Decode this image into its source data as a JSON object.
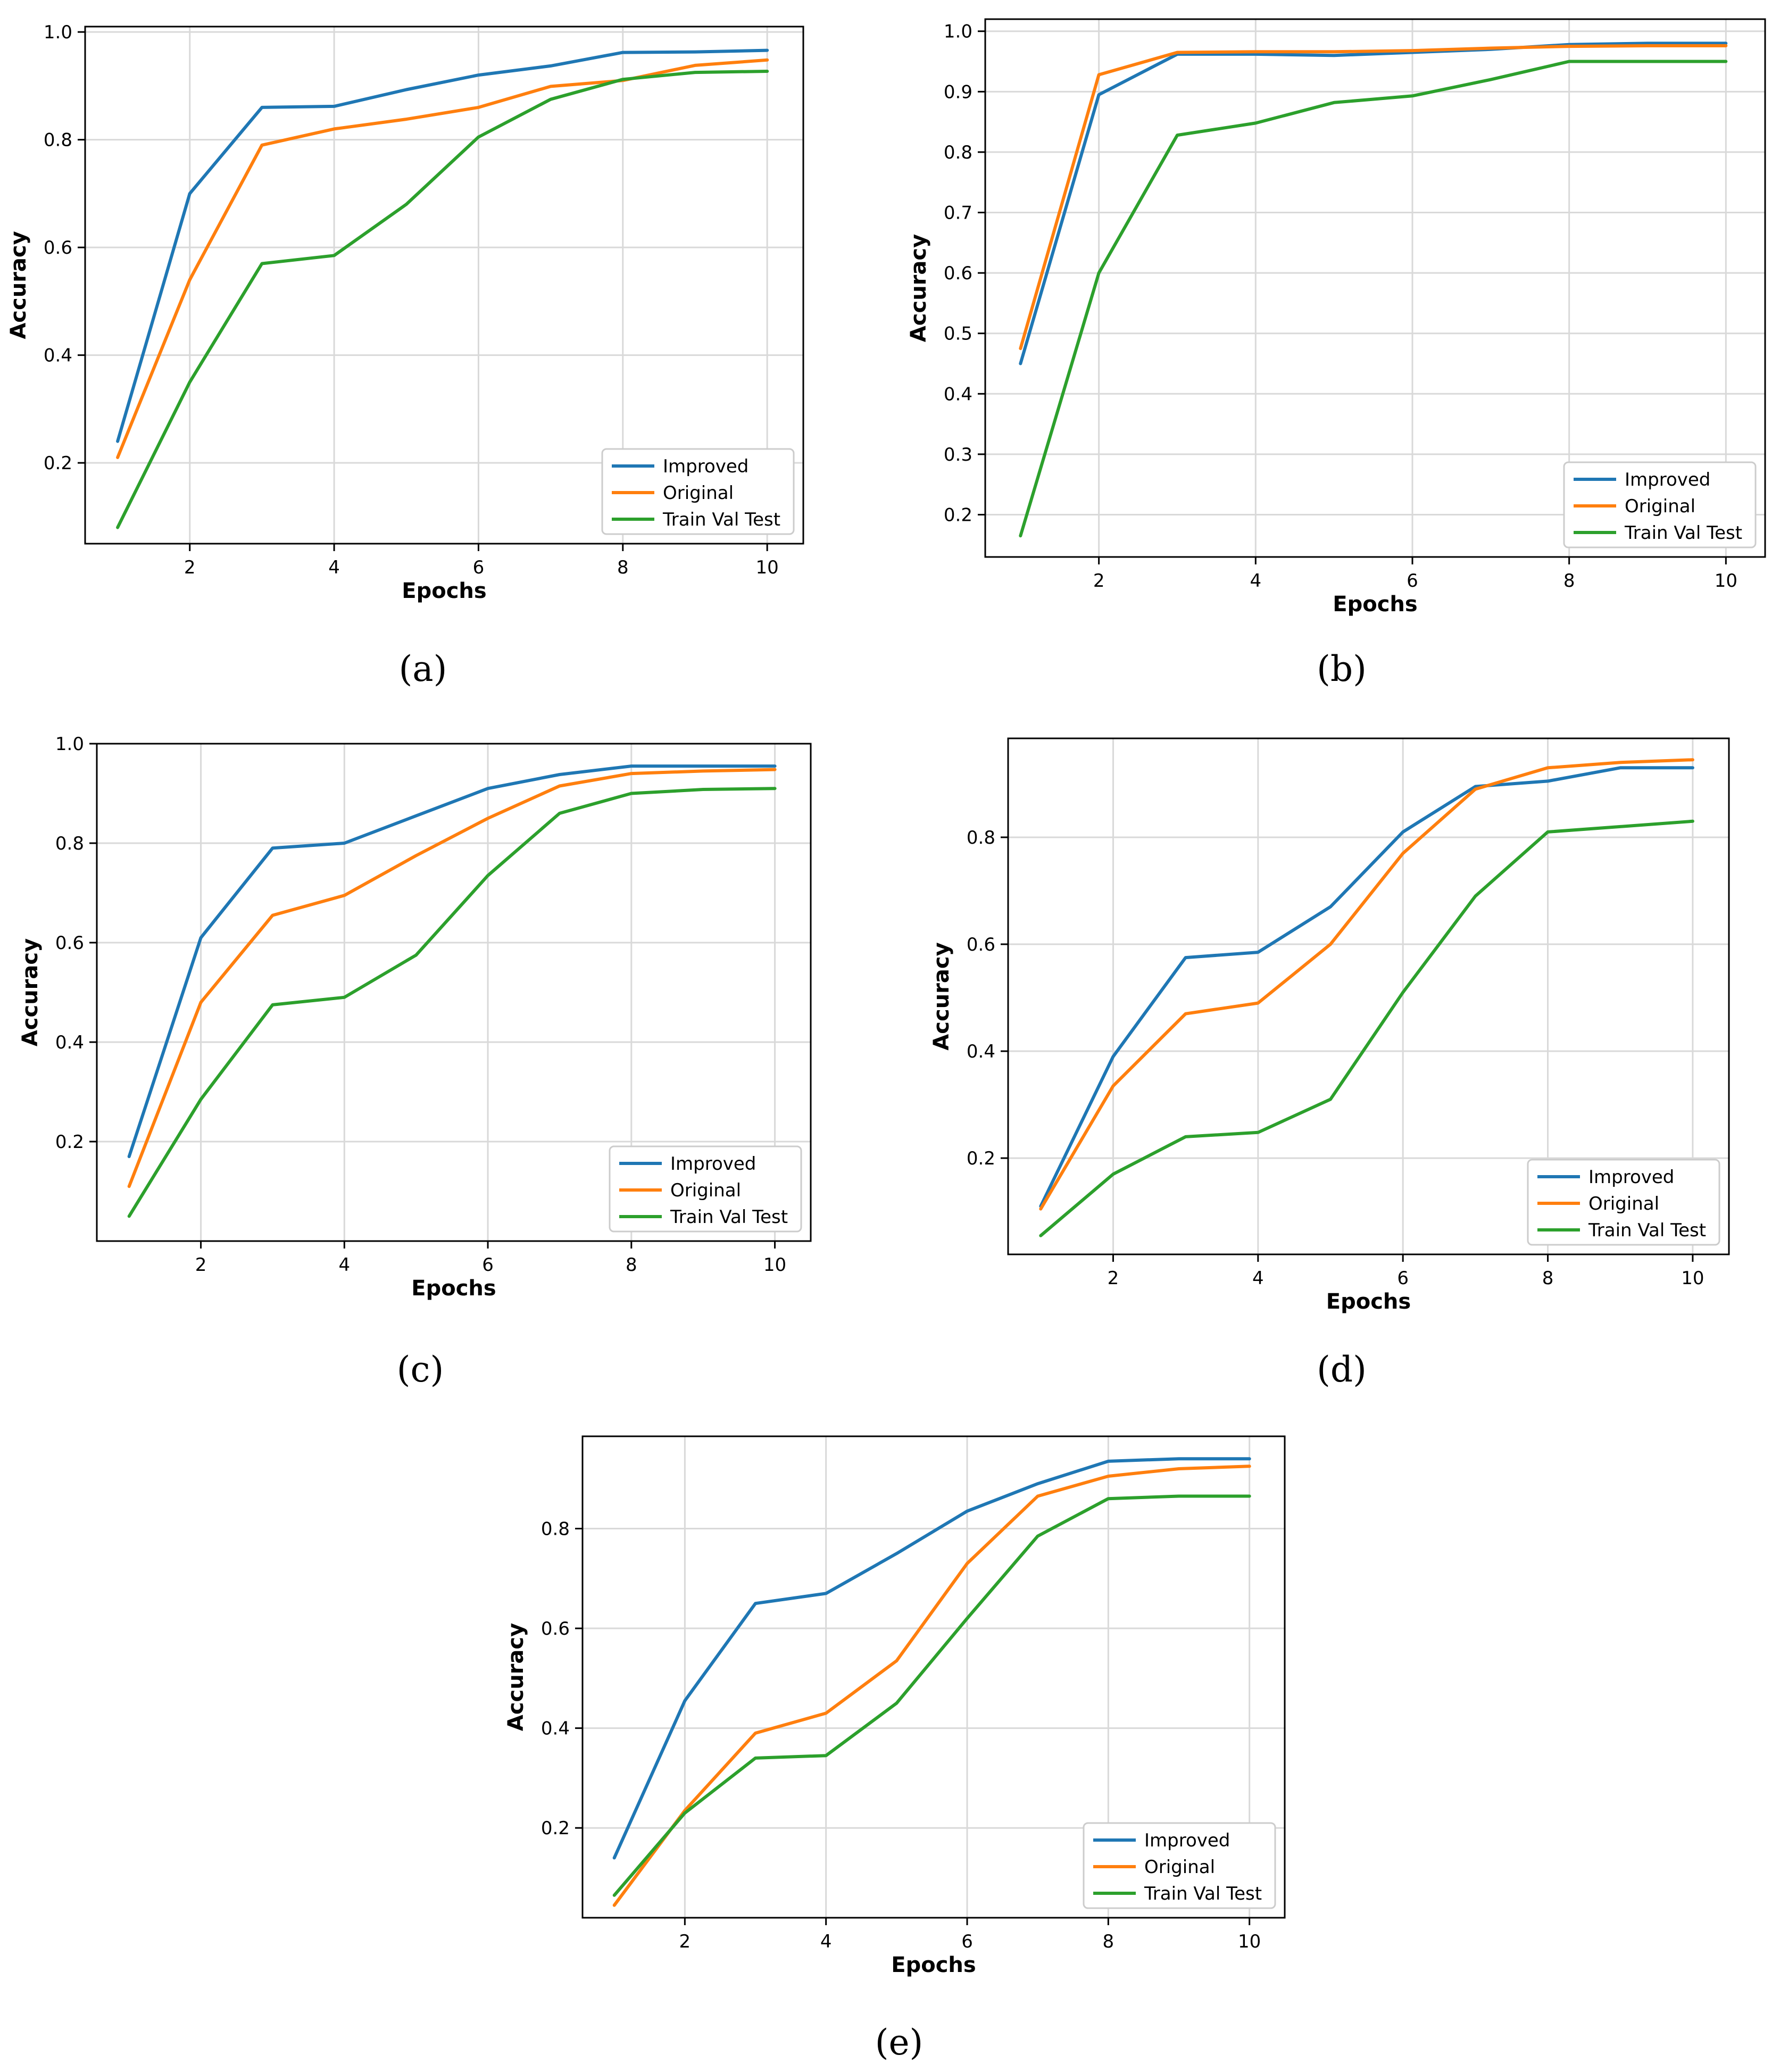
{
  "colors": {
    "improved": "#1f77b4",
    "original": "#ff7f0e",
    "trainvaltest": "#2ca02c",
    "grid": "#d9d9d9",
    "axis": "#000000"
  },
  "chart_data": [
    {
      "type": "line",
      "panel": "a",
      "caption": "(a)",
      "xlabel": "Epochs",
      "ylabel": "Accuracy",
      "xlim": [
        0.55,
        10.5
      ],
      "ylim": [
        0.05,
        1.01
      ],
      "xticks": [
        "2",
        "4",
        "6",
        "8",
        "10"
      ],
      "yticks": [
        "0.2",
        "0.4",
        "0.6",
        "0.8",
        "1.0"
      ],
      "legend_position": "lower-right",
      "grid": true,
      "x": [
        1,
        2,
        3,
        4,
        5,
        6,
        7,
        8,
        9,
        10
      ],
      "series": [
        {
          "name": "Improved",
          "color": "#1f77b4",
          "values": [
            0.24,
            0.7,
            0.86,
            0.862,
            0.893,
            0.92,
            0.937,
            0.962,
            0.963,
            0.966
          ]
        },
        {
          "name": "Original",
          "color": "#ff7f0e",
          "values": [
            0.21,
            0.54,
            0.79,
            0.82,
            0.838,
            0.86,
            0.899,
            0.91,
            0.938,
            0.948
          ]
        },
        {
          "name": "Train Val Test",
          "color": "#2ca02c",
          "values": [
            0.08,
            0.35,
            0.57,
            0.585,
            0.68,
            0.805,
            0.875,
            0.912,
            0.925,
            0.927
          ]
        }
      ]
    },
    {
      "type": "line",
      "panel": "b",
      "caption": "(b)",
      "xlabel": "Epochs",
      "ylabel": "Accuracy",
      "xlim": [
        0.55,
        10.5
      ],
      "ylim": [
        0.13,
        1.02
      ],
      "xticks": [
        "2",
        "4",
        "6",
        "8",
        "10"
      ],
      "yticks": [
        "0.2",
        "0.3",
        "0.4",
        "0.5",
        "0.6",
        "0.7",
        "0.8",
        "0.9",
        "1.0"
      ],
      "legend_position": "lower-right",
      "grid": true,
      "x": [
        1,
        2,
        3,
        4,
        5,
        6,
        7,
        8,
        9,
        10
      ],
      "series": [
        {
          "name": "Improved",
          "color": "#1f77b4",
          "values": [
            0.45,
            0.895,
            0.962,
            0.962,
            0.96,
            0.965,
            0.97,
            0.978,
            0.98,
            0.98
          ]
        },
        {
          "name": "Original",
          "color": "#ff7f0e",
          "values": [
            0.475,
            0.928,
            0.965,
            0.966,
            0.966,
            0.968,
            0.972,
            0.975,
            0.976,
            0.976
          ]
        },
        {
          "name": "Train Val Test",
          "color": "#2ca02c",
          "values": [
            0.165,
            0.6,
            0.828,
            0.848,
            0.882,
            0.893,
            0.92,
            0.95,
            0.95,
            0.95
          ]
        }
      ]
    },
    {
      "type": "line",
      "panel": "c",
      "caption": "(c)",
      "xlabel": "Epochs",
      "ylabel": "Accuracy",
      "xlim": [
        0.55,
        10.5
      ],
      "ylim": [
        0.0,
        1.0
      ],
      "xticks": [
        "2",
        "4",
        "6",
        "8",
        "10"
      ],
      "yticks": [
        "0.2",
        "0.4",
        "0.6",
        "0.8",
        "1.0"
      ],
      "legend_position": "lower-right",
      "grid": true,
      "x": [
        1,
        2,
        3,
        4,
        5,
        6,
        7,
        8,
        9,
        10
      ],
      "series": [
        {
          "name": "Improved",
          "color": "#1f77b4",
          "values": [
            0.17,
            0.61,
            0.79,
            0.8,
            0.855,
            0.91,
            0.938,
            0.955,
            0.955,
            0.955
          ]
        },
        {
          "name": "Original",
          "color": "#ff7f0e",
          "values": [
            0.11,
            0.48,
            0.655,
            0.695,
            0.775,
            0.85,
            0.915,
            0.94,
            0.945,
            0.948
          ]
        },
        {
          "name": "Train Val Test",
          "color": "#2ca02c",
          "values": [
            0.05,
            0.285,
            0.475,
            0.49,
            0.575,
            0.735,
            0.86,
            0.9,
            0.908,
            0.91
          ]
        }
      ]
    },
    {
      "type": "line",
      "panel": "d",
      "caption": "(d)",
      "xlabel": "Epochs",
      "ylabel": "Accuracy",
      "xlim": [
        0.55,
        10.5
      ],
      "ylim": [
        0.02,
        0.985
      ],
      "xticks": [
        "2",
        "4",
        "6",
        "8",
        "10"
      ],
      "yticks": [
        "0.2",
        "0.4",
        "0.6",
        "0.8"
      ],
      "legend_position": "lower-right",
      "grid": true,
      "x": [
        1,
        2,
        3,
        4,
        5,
        6,
        7,
        8,
        9,
        10
      ],
      "series": [
        {
          "name": "Improved",
          "color": "#1f77b4",
          "values": [
            0.11,
            0.39,
            0.575,
            0.585,
            0.67,
            0.81,
            0.895,
            0.905,
            0.93,
            0.93
          ]
        },
        {
          "name": "Original",
          "color": "#ff7f0e",
          "values": [
            0.105,
            0.335,
            0.47,
            0.49,
            0.6,
            0.77,
            0.89,
            0.93,
            0.94,
            0.945
          ]
        },
        {
          "name": "Train Val Test",
          "color": "#2ca02c",
          "values": [
            0.055,
            0.17,
            0.24,
            0.248,
            0.31,
            0.51,
            0.69,
            0.81,
            0.82,
            0.83
          ]
        }
      ]
    },
    {
      "type": "line",
      "panel": "e",
      "caption": "(e)",
      "xlabel": "Epochs",
      "ylabel": "Accuracy",
      "xlim": [
        0.55,
        10.5
      ],
      "ylim": [
        0.02,
        0.985
      ],
      "xticks": [
        "2",
        "4",
        "6",
        "8",
        "10"
      ],
      "yticks": [
        "0.2",
        "0.4",
        "0.6",
        "0.8"
      ],
      "legend_position": "lower-right",
      "grid": true,
      "x": [
        1,
        2,
        3,
        4,
        5,
        6,
        7,
        8,
        9,
        10
      ],
      "series": [
        {
          "name": "Improved",
          "color": "#1f77b4",
          "values": [
            0.14,
            0.455,
            0.65,
            0.67,
            0.75,
            0.835,
            0.89,
            0.935,
            0.94,
            0.94
          ]
        },
        {
          "name": "Original",
          "color": "#ff7f0e",
          "values": [
            0.045,
            0.235,
            0.39,
            0.43,
            0.535,
            0.73,
            0.865,
            0.905,
            0.92,
            0.925
          ]
        },
        {
          "name": "Train Val Test",
          "color": "#2ca02c",
          "values": [
            0.065,
            0.23,
            0.34,
            0.345,
            0.45,
            0.62,
            0.785,
            0.86,
            0.865,
            0.865
          ]
        }
      ]
    }
  ]
}
